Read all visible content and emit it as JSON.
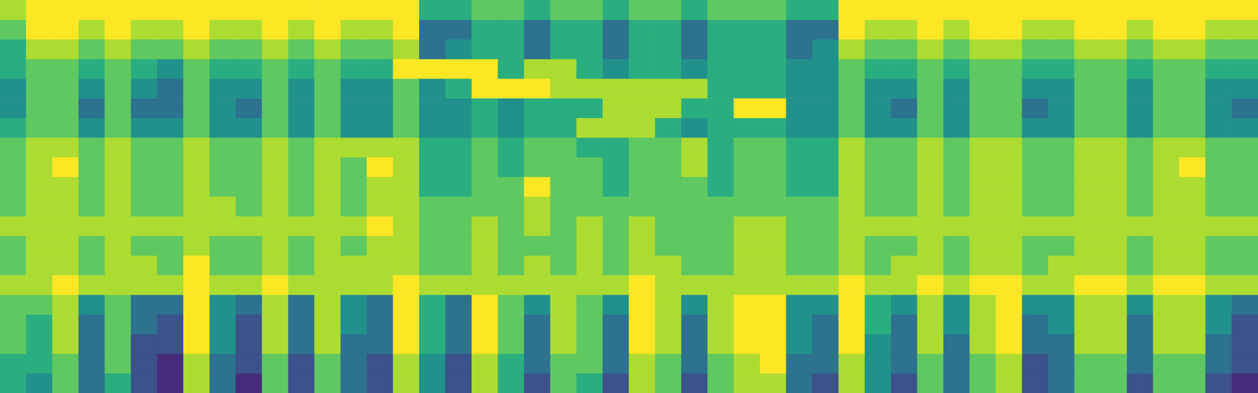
{
  "chart_data": {
    "type": "heatmap",
    "color": "viridis",
    "zlim": [
      0,
      8
    ],
    "grid": false,
    "tick_labels": false,
    "cells": [
      [
        7,
        8,
        8,
        8,
        8,
        8,
        8,
        8,
        8,
        8,
        8,
        8,
        8,
        8,
        8,
        8,
        5,
        5,
        6,
        6,
        5,
        6,
        6,
        5,
        6,
        6,
        5,
        6,
        6,
        6,
        5,
        5,
        8,
        8,
        8,
        8,
        8,
        8,
        8,
        8,
        8,
        8,
        8,
        8,
        8,
        8,
        8,
        8
      ],
      [
        6,
        8,
        8,
        7,
        8,
        7,
        7,
        8,
        7,
        7,
        8,
        7,
        8,
        7,
        7,
        8,
        3,
        3,
        5,
        5,
        3,
        5,
        5,
        3,
        5,
        5,
        3,
        5,
        5,
        5,
        3,
        3,
        8,
        7,
        7,
        8,
        7,
        8,
        8,
        7,
        7,
        8,
        8,
        7,
        8,
        8,
        7,
        7
      ],
      [
        5,
        7,
        7,
        6,
        7,
        6,
        6,
        7,
        6,
        6,
        7,
        6,
        7,
        6,
        6,
        7,
        3,
        4,
        5,
        5,
        3,
        5,
        5,
        3,
        5,
        5,
        3,
        5,
        5,
        5,
        3,
        4,
        7,
        6,
        6,
        7,
        6,
        7,
        7,
        6,
        6,
        7,
        7,
        6,
        7,
        7,
        6,
        6
      ],
      [
        5,
        6,
        6,
        5,
        6,
        5,
        4,
        6,
        5,
        5,
        6,
        5,
        6,
        5,
        5,
        8,
        8,
        8,
        8,
        5,
        7,
        7,
        5,
        4,
        5,
        5,
        4,
        5,
        5,
        5,
        4,
        4,
        6,
        5,
        5,
        6,
        5,
        6,
        6,
        5,
        5,
        6,
        6,
        5,
        6,
        6,
        5,
        5
      ],
      [
        4,
        6,
        6,
        4,
        6,
        4,
        3,
        6,
        4,
        4,
        6,
        4,
        6,
        4,
        4,
        6,
        4,
        5,
        8,
        8,
        8,
        7,
        7,
        7,
        7,
        7,
        7,
        5,
        5,
        5,
        4,
        4,
        6,
        4,
        4,
        6,
        4,
        6,
        6,
        4,
        4,
        6,
        6,
        4,
        6,
        6,
        4,
        4
      ],
      [
        4,
        6,
        6,
        3,
        6,
        3,
        3,
        6,
        4,
        3,
        6,
        4,
        6,
        4,
        4,
        6,
        4,
        4,
        5,
        4,
        5,
        5,
        5,
        7,
        7,
        7,
        5,
        5,
        8,
        8,
        4,
        4,
        6,
        4,
        3,
        6,
        4,
        6,
        6,
        3,
        4,
        6,
        6,
        4,
        6,
        6,
        4,
        3
      ],
      [
        5,
        6,
        6,
        4,
        6,
        4,
        4,
        6,
        4,
        4,
        6,
        4,
        6,
        4,
        4,
        6,
        4,
        4,
        5,
        4,
        5,
        5,
        7,
        7,
        7,
        5,
        4,
        5,
        5,
        5,
        4,
        4,
        6,
        4,
        4,
        6,
        4,
        6,
        6,
        4,
        4,
        6,
        6,
        4,
        6,
        6,
        4,
        4
      ],
      [
        6,
        7,
        7,
        6,
        7,
        6,
        6,
        7,
        6,
        6,
        7,
        6,
        7,
        7,
        7,
        7,
        5,
        5,
        6,
        5,
        6,
        6,
        5,
        5,
        6,
        6,
        7,
        5,
        6,
        6,
        5,
        5,
        7,
        6,
        6,
        7,
        6,
        7,
        7,
        6,
        6,
        7,
        7,
        6,
        7,
        7,
        6,
        6
      ],
      [
        6,
        7,
        8,
        6,
        7,
        6,
        6,
        7,
        6,
        6,
        7,
        6,
        7,
        6,
        8,
        7,
        5,
        5,
        6,
        5,
        6,
        6,
        6,
        5,
        6,
        6,
        7,
        5,
        6,
        6,
        5,
        5,
        7,
        6,
        6,
        7,
        6,
        7,
        7,
        6,
        6,
        7,
        7,
        6,
        7,
        8,
        6,
        6
      ],
      [
        6,
        7,
        7,
        6,
        7,
        6,
        6,
        7,
        6,
        6,
        7,
        6,
        7,
        6,
        7,
        7,
        5,
        5,
        6,
        6,
        8,
        6,
        6,
        5,
        6,
        6,
        6,
        5,
        6,
        6,
        5,
        5,
        7,
        6,
        6,
        7,
        6,
        7,
        7,
        6,
        6,
        7,
        7,
        6,
        7,
        7,
        6,
        6
      ],
      [
        6,
        7,
        7,
        6,
        7,
        6,
        6,
        7,
        7,
        6,
        7,
        6,
        7,
        6,
        7,
        7,
        6,
        6,
        6,
        6,
        7,
        6,
        6,
        6,
        6,
        6,
        6,
        6,
        6,
        6,
        6,
        6,
        7,
        6,
        6,
        7,
        6,
        7,
        7,
        6,
        6,
        7,
        7,
        6,
        7,
        7,
        6,
        6
      ],
      [
        7,
        7,
        7,
        7,
        7,
        7,
        7,
        7,
        7,
        7,
        7,
        7,
        7,
        7,
        8,
        7,
        6,
        6,
        7,
        6,
        7,
        6,
        7,
        6,
        7,
        6,
        6,
        6,
        7,
        7,
        6,
        6,
        7,
        7,
        7,
        7,
        7,
        7,
        7,
        7,
        7,
        7,
        7,
        7,
        7,
        7,
        7,
        7
      ],
      [
        6,
        7,
        7,
        6,
        7,
        6,
        6,
        7,
        6,
        6,
        7,
        6,
        7,
        6,
        7,
        7,
        6,
        6,
        7,
        6,
        6,
        6,
        7,
        6,
        7,
        6,
        6,
        6,
        7,
        7,
        6,
        6,
        7,
        6,
        6,
        7,
        6,
        7,
        7,
        6,
        6,
        7,
        7,
        6,
        7,
        7,
        6,
        6
      ],
      [
        6,
        7,
        7,
        6,
        7,
        7,
        6,
        8,
        6,
        6,
        7,
        6,
        7,
        7,
        7,
        7,
        6,
        6,
        7,
        6,
        7,
        6,
        7,
        6,
        7,
        7,
        6,
        6,
        7,
        7,
        6,
        6,
        7,
        6,
        7,
        7,
        6,
        7,
        7,
        6,
        7,
        7,
        7,
        6,
        7,
        7,
        6,
        6
      ],
      [
        7,
        7,
        8,
        7,
        7,
        7,
        7,
        8,
        7,
        7,
        8,
        7,
        7,
        7,
        7,
        8,
        7,
        7,
        7,
        7,
        7,
        7,
        7,
        7,
        8,
        7,
        7,
        7,
        7,
        7,
        7,
        7,
        8,
        7,
        7,
        8,
        7,
        8,
        8,
        7,
        7,
        8,
        8,
        7,
        8,
        8,
        7,
        7
      ],
      [
        6,
        6,
        7,
        4,
        6,
        3,
        3,
        8,
        4,
        3,
        7,
        3,
        7,
        4,
        3,
        8,
        5,
        3,
        8,
        6,
        4,
        7,
        6,
        4,
        8,
        7,
        4,
        7,
        8,
        8,
        4,
        4,
        8,
        5,
        4,
        7,
        4,
        7,
        8,
        4,
        4,
        7,
        7,
        4,
        7,
        7,
        4,
        3
      ],
      [
        6,
        5,
        7,
        3,
        6,
        3,
        2,
        8,
        4,
        2,
        7,
        3,
        7,
        4,
        3,
        8,
        5,
        3,
        8,
        6,
        3,
        7,
        6,
        3,
        8,
        7,
        3,
        7,
        8,
        8,
        4,
        3,
        8,
        5,
        3,
        7,
        4,
        7,
        8,
        3,
        4,
        7,
        7,
        3,
        7,
        7,
        4,
        2
      ],
      [
        6,
        5,
        7,
        3,
        6,
        2,
        2,
        8,
        4,
        2,
        7,
        3,
        7,
        3,
        3,
        8,
        5,
        3,
        8,
        6,
        3,
        7,
        6,
        3,
        8,
        7,
        3,
        7,
        8,
        8,
        4,
        3,
        8,
        4,
        3,
        7,
        3,
        7,
        8,
        3,
        3,
        7,
        7,
        3,
        7,
        7,
        3,
        2
      ],
      [
        5,
        5,
        6,
        3,
        6,
        2,
        1,
        7,
        3,
        2,
        6,
        2,
        6,
        3,
        2,
        7,
        4,
        2,
        7,
        5,
        3,
        6,
        6,
        3,
        7,
        6,
        3,
        6,
        7,
        8,
        3,
        3,
        7,
        4,
        3,
        6,
        3,
        6,
        7,
        2,
        3,
        6,
        6,
        3,
        6,
        6,
        3,
        2
      ],
      [
        5,
        4,
        6,
        3,
        5,
        2,
        1,
        7,
        3,
        1,
        6,
        2,
        6,
        3,
        2,
        7,
        4,
        2,
        7,
        5,
        2,
        6,
        5,
        2,
        7,
        6,
        2,
        6,
        7,
        7,
        3,
        2,
        7,
        4,
        2,
        6,
        3,
        6,
        7,
        2,
        3,
        6,
        6,
        2,
        6,
        6,
        2,
        1
      ]
    ]
  }
}
